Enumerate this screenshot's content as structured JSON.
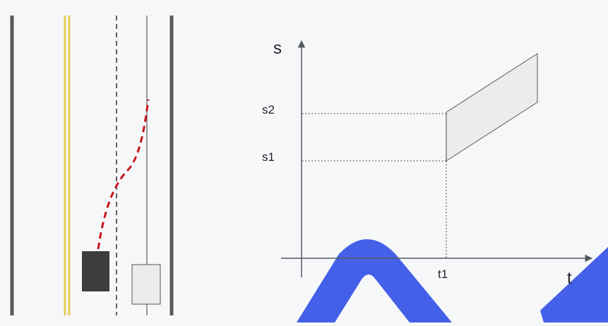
{
  "axes": {
    "y_label": "s",
    "x_label": "t"
  },
  "ticks": {
    "s2": "s2",
    "s1": "s1",
    "t1": "t1"
  },
  "colors": {
    "road_edge": "#58595b",
    "yellow_line": "#e6cc57",
    "lane_dash": "#2e2e2e",
    "center_line": "#3a3a3a",
    "ego_vehicle": "#3d3d3d",
    "other_vehicle": "#ececec",
    "path": "#c4161c",
    "st_region_fill": "#ececec",
    "axis": "#555a60",
    "watermark": "#3b57e8"
  }
}
